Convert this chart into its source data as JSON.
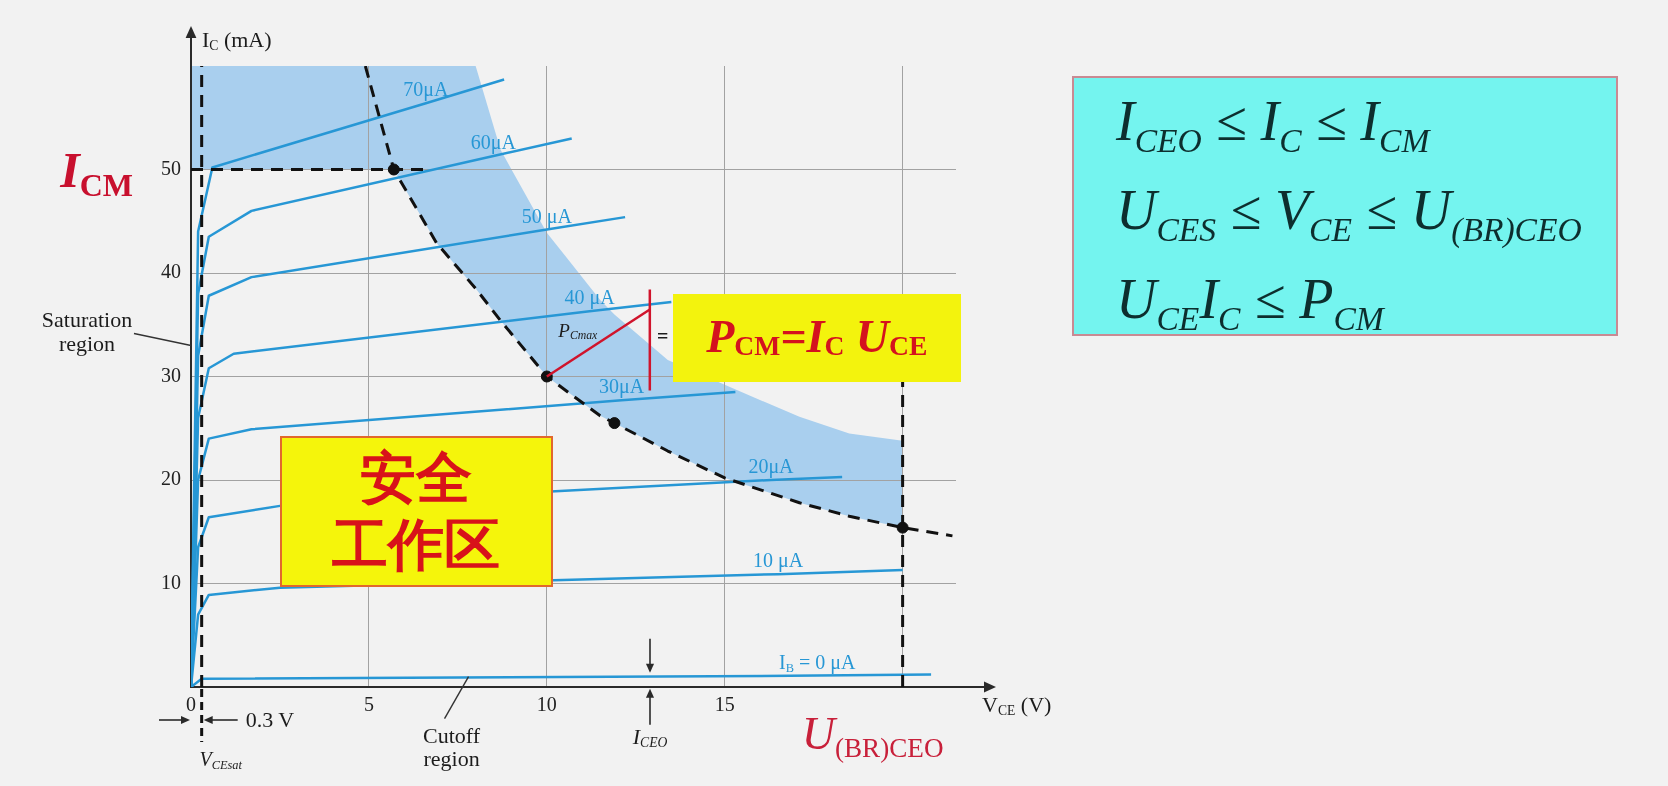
{
  "chart_data": [
    {
      "type": "line",
      "xlabel": "V$_{CE}$ (V)",
      "ylabel": "I$_{C}$ (mA)",
      "xlim": [
        0,
        21.5
      ],
      "ylim": [
        0,
        60
      ],
      "xticks": [
        0,
        5,
        10,
        15,
        {
          "value": 20,
          "label": null
        }
      ],
      "yticks": [
        10,
        20,
        30,
        40,
        50
      ],
      "grid": true,
      "marker": "none",
      "series": [
        {
          "type": "line",
          "color": "#111111",
          "line_style": "dashed",
          "x": [
            4.9,
            5.7,
            6.9,
            8,
            8.7,
            10,
            11.5,
            11.9,
            13.4,
            15,
            17.1,
            18.5,
            20,
            21.4
          ],
          "values": [
            60,
            50,
            42.9,
            38.5,
            35.4,
            30,
            26.2,
            25.5,
            22.8,
            20.2,
            17.8,
            16.5,
            15.4,
            14.6
          ],
          "lower": [
            60,
            50,
            42.9,
            38.5,
            35.4,
            30,
            26.2,
            25.5,
            22.8,
            20.2,
            17.8,
            16.5,
            15.4,
            null
          ],
          "upper": [
            60,
            60,
            60,
            60,
            51.9,
            43.9,
            37.4,
            36,
            31.6,
            29.2,
            26.1,
            24.5,
            23.8,
            null
          ]
        },
        {
          "type": "line",
          "name": "I$_{CM}$",
          "color": "#111111",
          "line_style": "dashed",
          "x": [
            0,
            5.7,
            6.6
          ],
          "values": [
            50,
            50,
            50
          ],
          "lower": [
            50,
            50,
            null
          ],
          "upper": [
            60,
            60,
            null
          ]
        },
        {
          "type": "line",
          "name": "U$_{(BR)CEO}$",
          "color": "#111111",
          "line_style": "dashed",
          "x": [
            20,
            20
          ],
          "values": [
            0,
            29.6
          ]
        },
        {
          "type": "line",
          "name": "70μA",
          "color": "#2797d5",
          "x": [
            0,
            0.2,
            0.6,
            6.6,
            8.8
          ],
          "values": [
            0,
            44,
            50.2,
            56.4,
            58.7
          ]
        },
        {
          "type": "line",
          "name": "60μA",
          "color": "#2797d5",
          "x": [
            0,
            0.2,
            0.5,
            1.7,
            8.5,
            10.7
          ],
          "values": [
            0,
            38,
            43.5,
            46,
            51.3,
            53
          ]
        },
        {
          "type": "line",
          "name": "50 μA",
          "color": "#2797d5",
          "x": [
            0,
            0.2,
            0.5,
            1.7,
            10,
            12.2
          ],
          "values": [
            0,
            32,
            37.8,
            39.6,
            44.2,
            45.4
          ]
        },
        {
          "type": "line",
          "name": "40 μA",
          "color": "#2797d5",
          "x": [
            0,
            0.2,
            0.5,
            1.2,
            11.2,
            13.5
          ],
          "values": [
            0,
            26,
            30.8,
            32.2,
            36.3,
            37.2
          ]
        },
        {
          "type": "line",
          "name": "30μA",
          "color": "#2797d5",
          "x": [
            0,
            0.2,
            0.5,
            1.7,
            12.1,
            15.3
          ],
          "values": [
            0,
            20,
            24,
            24.9,
            27.7,
            28.5
          ]
        },
        {
          "type": "line",
          "name": "20μA",
          "color": "#2797d5",
          "x": [
            0,
            0.2,
            0.5,
            2.5,
            16.3,
            18.3
          ],
          "values": [
            0,
            13.5,
            16.4,
            17.5,
            20,
            20.3
          ]
        },
        {
          "type": "line",
          "name": "10 μA",
          "color": "#2797d5",
          "x": [
            0,
            0.2,
            0.5,
            2.5,
            16.5,
            20
          ],
          "values": [
            0,
            7,
            8.9,
            9.6,
            10.9,
            11.3
          ]
        },
        {
          "type": "line",
          "name": "I$_{B}$ = 0 μA",
          "color": "#2797d5",
          "x": [
            0,
            0.3,
            17.6,
            20.8
          ],
          "values": [
            0,
            0.8,
            1.1,
            1.2
          ]
        },
        {
          "type": "scatter",
          "color": "#111111",
          "marker": "circle",
          "x": [
            5.7,
            10,
            11.9,
            20
          ],
          "values": [
            50,
            30,
            25.5,
            15.4
          ]
        }
      ],
      "ref_lines": [
        {
          "axis": "x",
          "value": 0.3,
          "label": "V$_{CEsat}$",
          "color": "#111111",
          "line_style": "dashed"
        }
      ],
      "annotations": [
        {
          "text": "Saturation region",
          "x": 0,
          "y": 33
        },
        {
          "text": "Cutoff region",
          "x": 7.8,
          "y": 1
        },
        {
          "text": "0.3 V",
          "x": 0.3,
          "y": 0
        },
        {
          "text": "I$_{CEO}$",
          "x": 12.9,
          "y": 1
        },
        {
          "text": "P$_{Cmax}$",
          "x": 10,
          "y": 30
        },
        {
          "text": "=",
          "x": 10,
          "y": 30
        },
        {
          "text": "P$_{CM}$=I$_{C}$ U$_{CE}$",
          "x": 10,
          "y": 30
        },
        "安全工作区"
      ]
    },
    {
      "type": "other",
      "annotations": [
        "I$_{CEO}$ ≤ I$_{C}$ ≤ I$_{CM}$",
        "U$_{CES}$ ≤ V$_{CE}$ ≤ U$_{(BR)CEO}$",
        "U$_{CE}$I$_{C}$ ≤ P$_{CM}$"
      ]
    }
  ]
}
